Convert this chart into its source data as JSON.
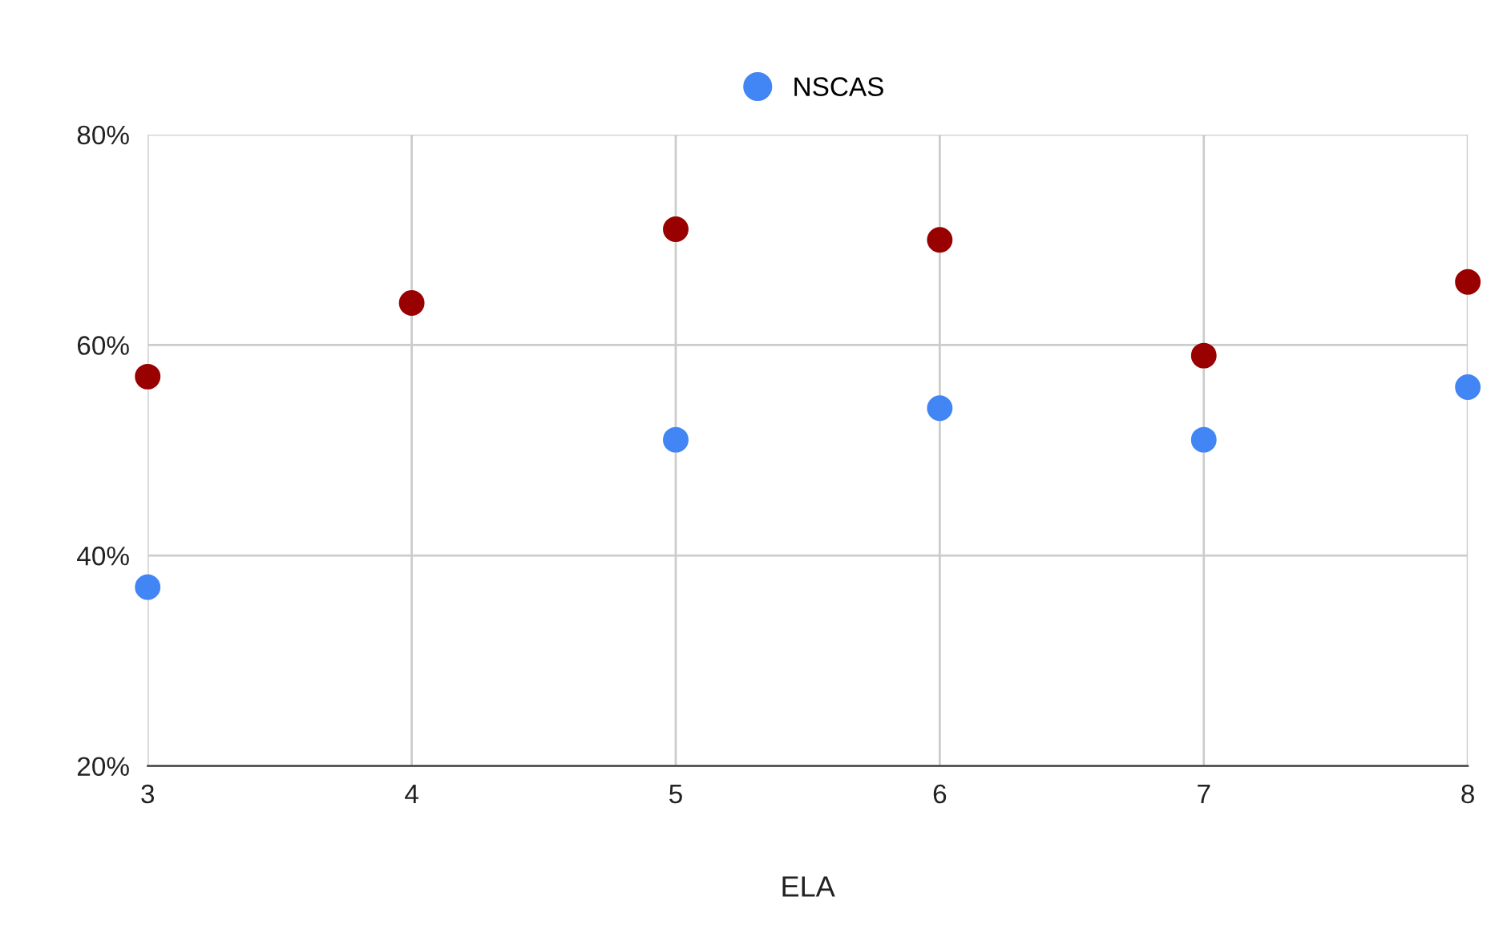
{
  "chart_data": {
    "type": "scatter",
    "xlabel": "ELA",
    "x": [
      3,
      4,
      5,
      6,
      7,
      8
    ],
    "series": [
      {
        "name": "NSCAS",
        "color": "#4285f4",
        "values": [
          37,
          null,
          51,
          54,
          51,
          56
        ]
      },
      {
        "color": "#990000",
        "values": [
          57,
          64,
          71,
          70,
          59,
          66
        ]
      }
    ],
    "xlim": [
      3,
      8
    ],
    "xticks": [
      3,
      4,
      5,
      6,
      7,
      8
    ],
    "ylim": [
      20,
      80
    ],
    "yticks": [
      {
        "value": 20,
        "label": "20%"
      },
      {
        "value": 40,
        "label": "40%"
      },
      {
        "value": 60,
        "label": "60%"
      },
      {
        "value": 80,
        "label": "80%"
      }
    ],
    "grid": true,
    "legend": "top",
    "marker": "circle"
  }
}
